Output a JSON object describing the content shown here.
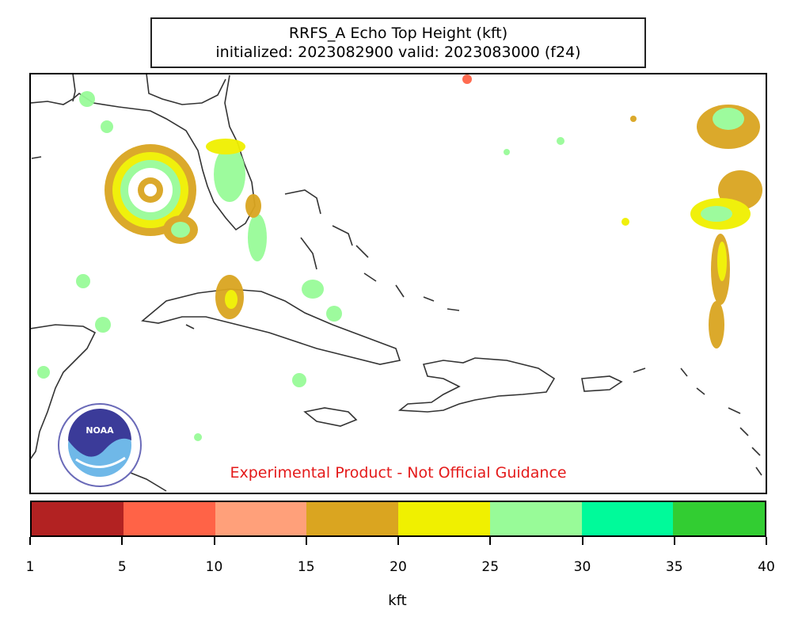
{
  "title": {
    "line1": "RRFS_A Echo Top Height (kft)",
    "line2": "initialized: 2023082900 valid: 2023083000 (f24)"
  },
  "disclaimer": "Experimental Product - Not Official Guidance",
  "logo": {
    "text": "NOAA",
    "icon": "noaa-logo"
  },
  "colorbar": {
    "unit": "kft",
    "ticks": [
      "1",
      "5",
      "10",
      "15",
      "20",
      "25",
      "30",
      "35",
      "40"
    ],
    "colors": [
      "#b22222",
      "#ff6347",
      "#ffa07a",
      "#daa520",
      "#f0f000",
      "#98fb98",
      "#00fa9a",
      "#32cd32"
    ]
  },
  "colors": {
    "coastline": "#333333",
    "border": "#000000",
    "disclaimer": "#e41a1a"
  }
}
